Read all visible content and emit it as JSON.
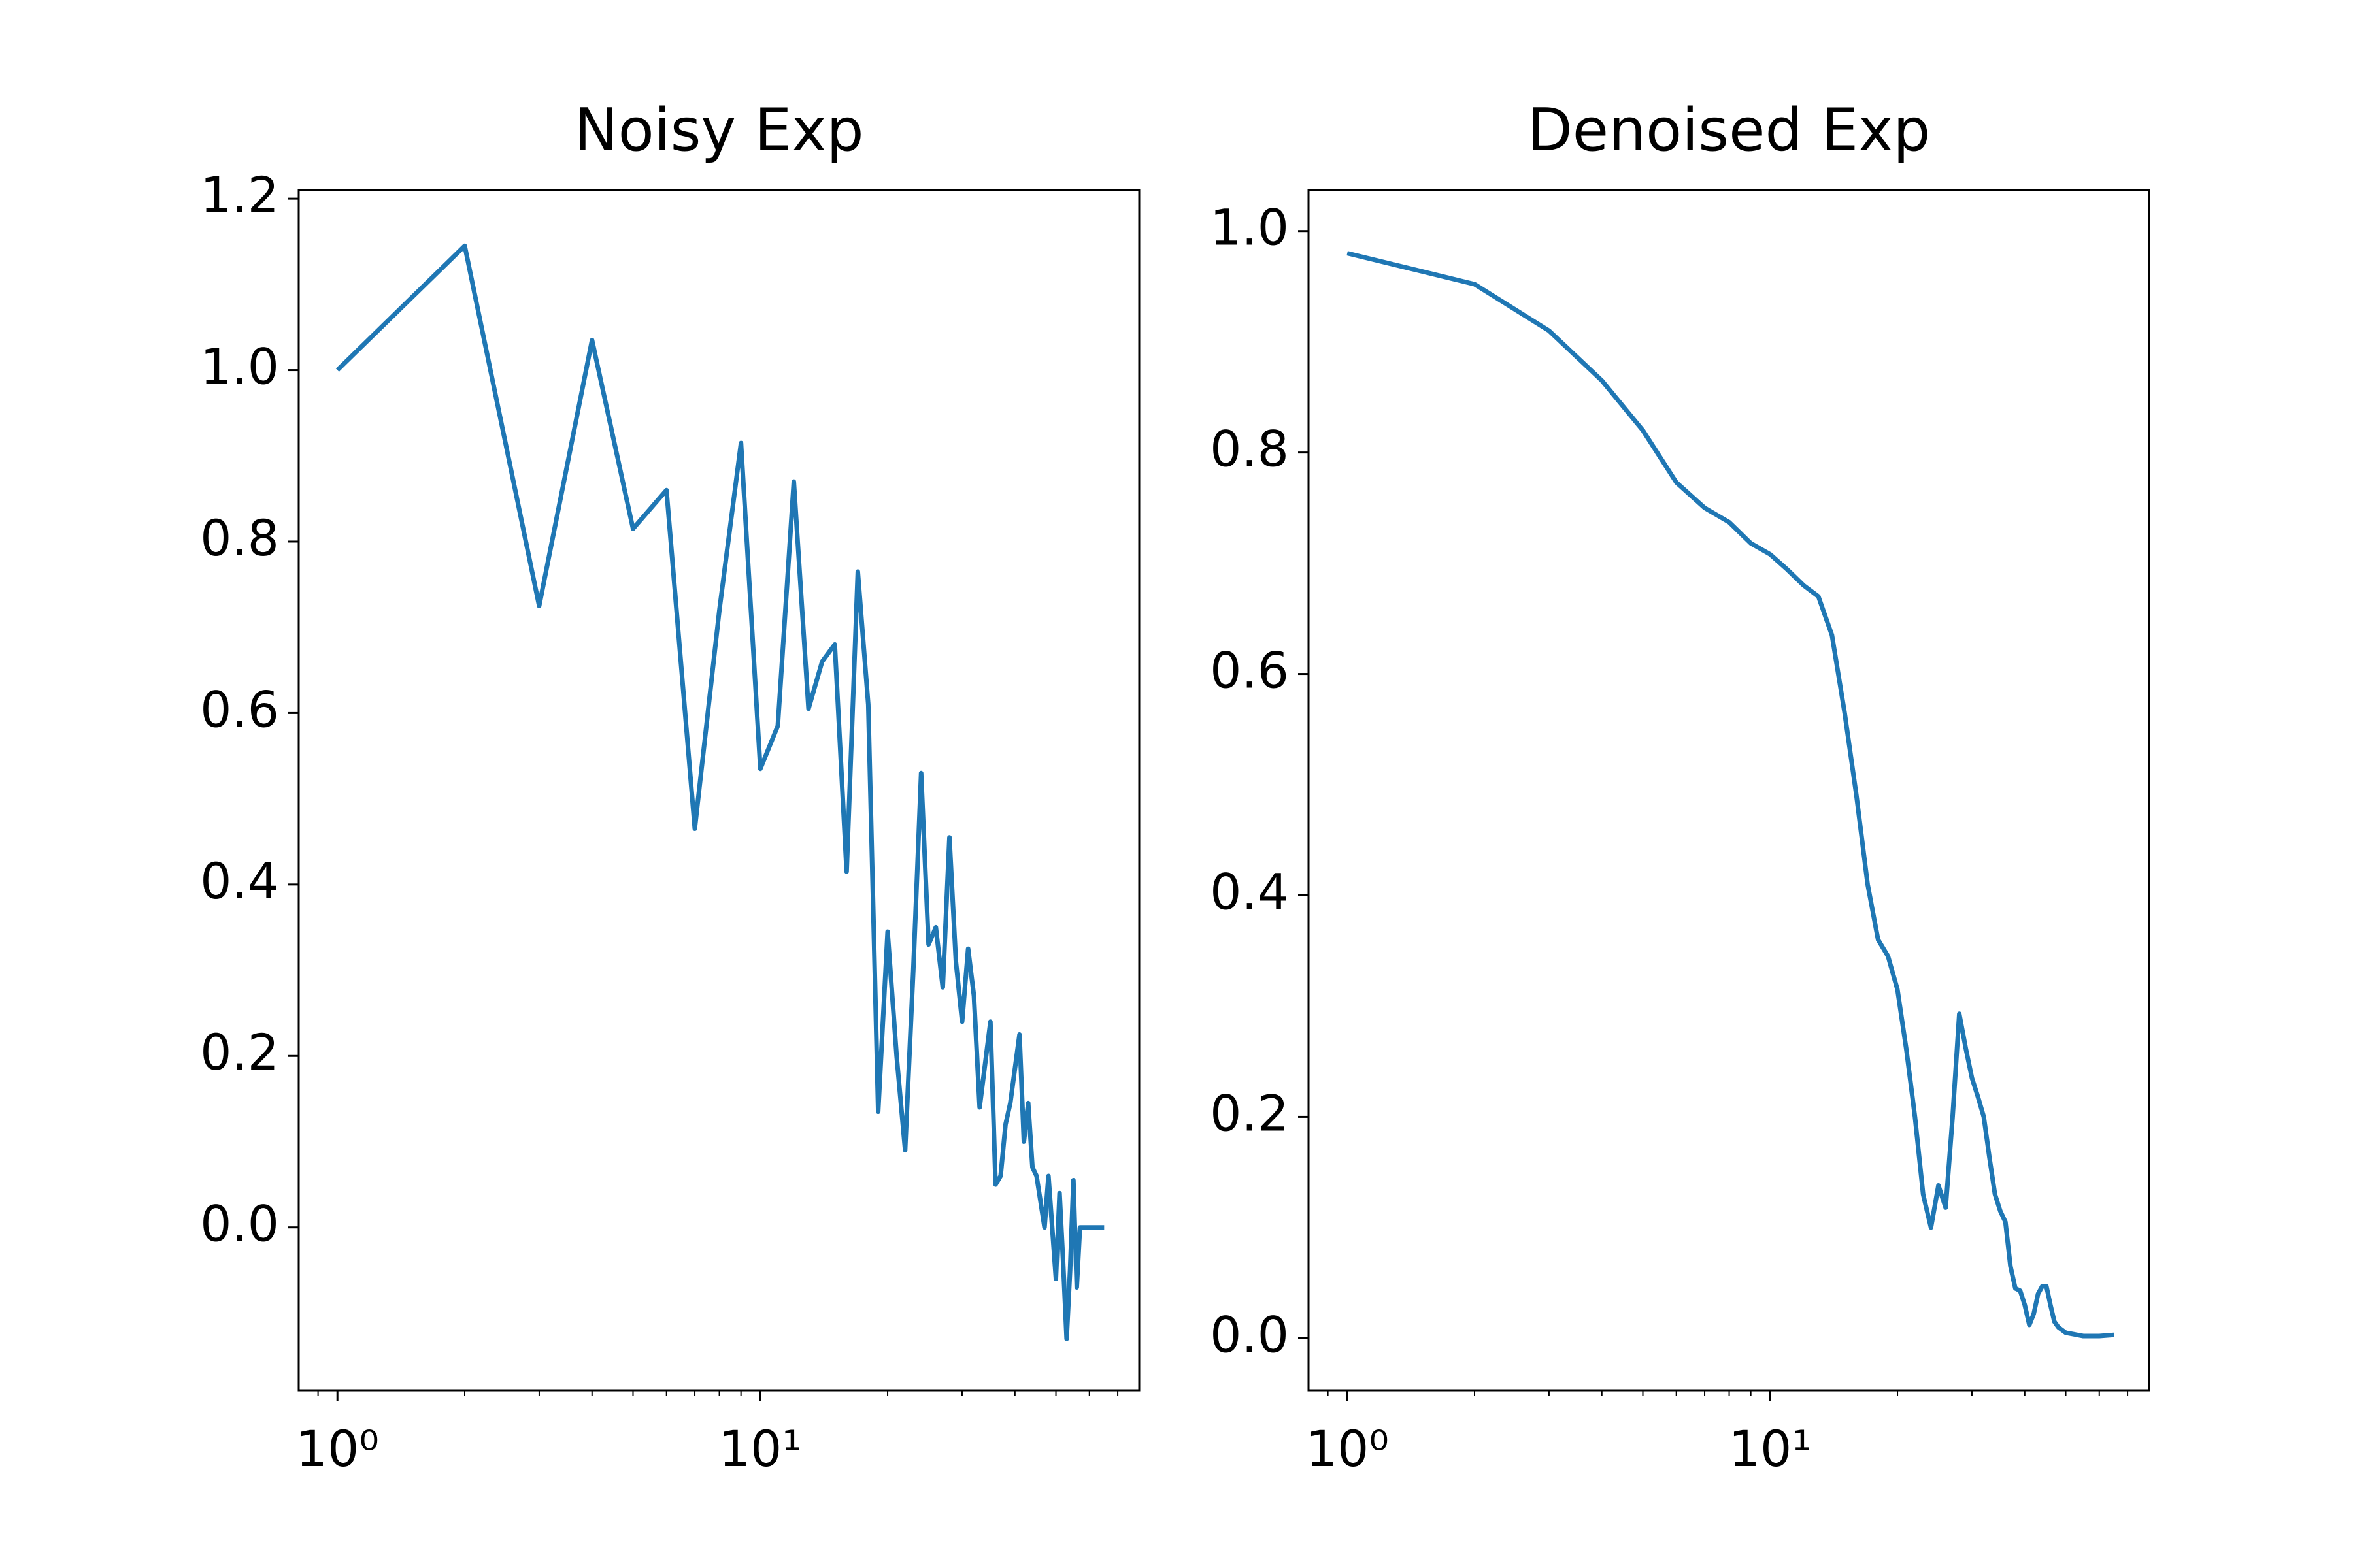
{
  "chart_data": [
    {
      "type": "line",
      "title": "Noisy Exp",
      "xscale": "log",
      "color": "#1f77b4",
      "x": [
        1,
        2,
        3,
        4,
        5,
        6,
        7,
        8,
        9,
        10,
        11,
        12,
        13,
        14,
        15,
        16,
        17,
        18,
        19,
        20,
        21,
        22,
        23,
        24,
        25,
        26,
        27,
        28,
        29,
        30,
        31,
        32,
        33,
        35,
        36,
        37,
        38,
        39,
        41,
        42,
        43,
        44,
        45,
        47,
        48,
        50,
        51,
        52,
        53,
        54,
        55,
        56,
        57,
        60,
        65
      ],
      "values": [
        1.0,
        1.145,
        0.725,
        1.035,
        0.815,
        0.86,
        0.465,
        0.72,
        0.915,
        0.535,
        0.585,
        0.87,
        0.605,
        0.66,
        0.68,
        0.415,
        0.765,
        0.61,
        0.135,
        0.345,
        0.2,
        0.09,
        0.3,
        0.53,
        0.33,
        0.35,
        0.28,
        0.455,
        0.31,
        0.24,
        0.325,
        0.27,
        0.14,
        0.24,
        0.05,
        0.06,
        0.12,
        0.145,
        0.225,
        0.1,
        0.145,
        0.07,
        0.06,
        0.0,
        0.06,
        -0.06,
        0.04,
        -0.04,
        -0.13,
        -0.05,
        0.055,
        -0.07,
        0.0,
        0.0,
        0.0
      ],
      "xlim": [
        0.81,
        78.7
      ],
      "xticks": [
        {
          "value": 1,
          "label": "10⁰"
        },
        {
          "value": 10,
          "label": "10¹"
        }
      ],
      "ylim": [
        -0.19,
        1.21
      ],
      "yticks": [
        {
          "value": 0,
          "label": "0.0"
        },
        0.2,
        0.4,
        0.6,
        0.8,
        {
          "value": 1,
          "label": "1.0"
        },
        1.2
      ]
    },
    {
      "type": "line",
      "title": "Denoised Exp",
      "xscale": "log",
      "color": "#1f77b4",
      "x": [
        1,
        2,
        3,
        4,
        5,
        6,
        7,
        8,
        9,
        10,
        11,
        12,
        13,
        14,
        15,
        16,
        17,
        18,
        19,
        20,
        21,
        22,
        23,
        24,
        25,
        26,
        27,
        28,
        29,
        30,
        31,
        32,
        33,
        34,
        35,
        36,
        37,
        38,
        39,
        40,
        41,
        42,
        43,
        44,
        45,
        46,
        47,
        48,
        50,
        55,
        60,
        65
      ],
      "values": [
        0.98,
        0.952,
        0.91,
        0.865,
        0.82,
        0.773,
        0.75,
        0.737,
        0.718,
        0.708,
        0.694,
        0.68,
        0.67,
        0.635,
        0.565,
        0.49,
        0.41,
        0.36,
        0.345,
        0.315,
        0.26,
        0.2,
        0.13,
        0.1,
        0.138,
        0.118,
        0.2,
        0.293,
        0.262,
        0.235,
        0.218,
        0.2,
        0.163,
        0.13,
        0.115,
        0.105,
        0.065,
        0.045,
        0.043,
        0.03,
        0.012,
        0.022,
        0.04,
        0.047,
        0.047,
        0.03,
        0.015,
        0.01,
        0.005,
        0.002,
        0.002,
        0.003
      ],
      "xlim": [
        0.81,
        78.7
      ],
      "xticks": [
        {
          "value": 1,
          "label": "10⁰"
        },
        {
          "value": 10,
          "label": "10¹"
        }
      ],
      "ylim": [
        -0.047,
        1.037
      ],
      "yticks": [
        {
          "value": 0,
          "label": "0.0"
        },
        0.2,
        0.4,
        0.6,
        0.8,
        {
          "value": 1,
          "label": "1.0"
        }
      ]
    }
  ]
}
